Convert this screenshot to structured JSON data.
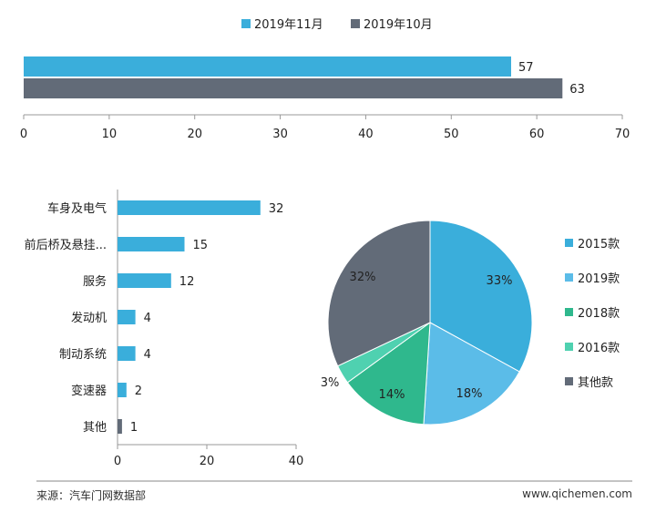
{
  "chart_data": [
    {
      "type": "bar",
      "orientation": "horizontal",
      "categories": [
        ""
      ],
      "series": [
        {
          "name": "2019年11月",
          "values": [
            57
          ]
        },
        {
          "name": "2019年10月",
          "values": [
            63
          ]
        }
      ],
      "xlim": [
        0,
        70
      ],
      "xticks": [
        0,
        10,
        20,
        30,
        40,
        50,
        60,
        70
      ],
      "legend": "top-center",
      "grid": false
    },
    {
      "type": "bar",
      "orientation": "horizontal",
      "categories": [
        "车身及电气",
        "前后桥及悬挂...",
        "服务",
        "发动机",
        "制动系统",
        "变速器",
        "其他"
      ],
      "values": [
        32,
        15,
        12,
        4,
        4,
        2,
        1
      ],
      "xlim": [
        0,
        40
      ],
      "xticks": [
        0,
        20,
        40
      ],
      "grid": false
    },
    {
      "type": "pie",
      "labels": [
        "2015款",
        "2019款",
        "2018款",
        "2016款",
        "其他款"
      ],
      "values": [
        33,
        18,
        14,
        3,
        32
      ],
      "value_labels": [
        "33%",
        "18%",
        "14%",
        "3%",
        "32%"
      ],
      "legend": "right"
    }
  ],
  "colors": {
    "blue": "#3aaedb",
    "gray": "#626b78",
    "light_blue": "#5bbce8",
    "green": "#2fb88d",
    "teal": "#4fd1b0"
  },
  "footer": {
    "source": "来源：汽车门网数据部",
    "site": "www.qichemen.com"
  }
}
